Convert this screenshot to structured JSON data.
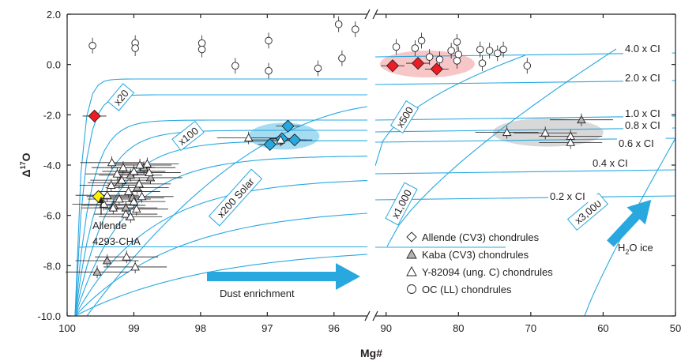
{
  "chart_data": {
    "type": "scatter",
    "xlabel": "Mg#",
    "ylabel_main": "Δ",
    "ylabel_sup": "17",
    "ylabel_end": "O",
    "ylim": [
      -10.0,
      2.0
    ],
    "y_ticks": [
      "2.0",
      "0.0",
      "-2.0",
      "-4.0",
      "-6.0",
      "-8.0",
      "-10.0"
    ],
    "left_panel": {
      "xlim": [
        100,
        95.5
      ],
      "x_ticks": [
        "100",
        "99",
        "98",
        "97",
        "96"
      ]
    },
    "right_panel": {
      "xlim": [
        91.5,
        50
      ],
      "x_ticks": [
        "90",
        "80",
        "70",
        "60",
        "50"
      ]
    },
    "series": [
      {
        "name": "Allende (CV3) chondrules",
        "marker": "diamond",
        "points": [
          {
            "x": 99.59,
            "y": -2.05,
            "color": "#ed1c24"
          },
          {
            "x": 99.53,
            "y": -5.25,
            "color": "#fff200"
          },
          {
            "x": 96.96,
            "y": -3.18,
            "color": "#29a8e0"
          },
          {
            "x": 96.78,
            "y": -2.95,
            "color": "#29a8e0"
          },
          {
            "x": 96.69,
            "y": -2.45,
            "color": "#29a8e0"
          },
          {
            "x": 96.59,
            "y": -3.0,
            "color": "#29a8e0"
          },
          {
            "x": 89.1,
            "y": -0.05,
            "color": "#ed1c24"
          },
          {
            "x": 85.6,
            "y": 0.05,
            "color": "#ed1c24"
          },
          {
            "x": 83.0,
            "y": -0.18,
            "color": "#ed1c24"
          }
        ]
      },
      {
        "name": "Kaba (CV3) chondrules",
        "marker": "triangle-filled",
        "points": [
          {
            "x": 99.3,
            "y": -5.6
          },
          {
            "x": 99.12,
            "y": -5.7
          },
          {
            "x": 99.02,
            "y": -5.3
          },
          {
            "x": 98.95,
            "y": -4.9
          },
          {
            "x": 98.85,
            "y": -4.1
          },
          {
            "x": 99.22,
            "y": -4.7
          },
          {
            "x": 99.05,
            "y": -4.4
          },
          {
            "x": 99.4,
            "y": -7.8
          },
          {
            "x": 99.55,
            "y": -8.25
          },
          {
            "x": 98.75,
            "y": -4.5
          },
          {
            "x": 63.0,
            "y": -2.2
          }
        ]
      },
      {
        "name": "Y-82094 (ung. C) chondrules",
        "marker": "triangle",
        "points": [
          {
            "x": 99.33,
            "y": -3.9
          },
          {
            "x": 99.16,
            "y": -4.1
          },
          {
            "x": 98.91,
            "y": -4.0
          },
          {
            "x": 98.8,
            "y": -3.95
          },
          {
            "x": 99.25,
            "y": -4.35
          },
          {
            "x": 99.0,
            "y": -4.25
          },
          {
            "x": 98.77,
            "y": -4.3
          },
          {
            "x": 99.34,
            "y": -4.8
          },
          {
            "x": 99.18,
            "y": -4.6
          },
          {
            "x": 99.08,
            "y": -5.05
          },
          {
            "x": 98.92,
            "y": -4.75
          },
          {
            "x": 99.4,
            "y": -5.2
          },
          {
            "x": 99.22,
            "y": -5.35
          },
          {
            "x": 99.0,
            "y": -5.45
          },
          {
            "x": 98.88,
            "y": -5.25
          },
          {
            "x": 99.31,
            "y": -5.7
          },
          {
            "x": 99.12,
            "y": -5.95
          },
          {
            "x": 98.96,
            "y": -5.75
          },
          {
            "x": 99.45,
            "y": -5.55
          },
          {
            "x": 99.05,
            "y": -6.05
          },
          {
            "x": 99.11,
            "y": -7.65
          },
          {
            "x": 98.98,
            "y": -8.05
          },
          {
            "x": 97.28,
            "y": -2.92
          },
          {
            "x": 96.8,
            "y": -3.0
          },
          {
            "x": 73.3,
            "y": -2.7
          },
          {
            "x": 68.0,
            "y": -2.72
          },
          {
            "x": 64.5,
            "y": -2.85
          },
          {
            "x": 64.5,
            "y": -3.1
          }
        ]
      },
      {
        "name": "OC (LL) chondrules",
        "marker": "circle",
        "points": [
          {
            "x": 99.62,
            "y": 0.75
          },
          {
            "x": 98.98,
            "y": 0.85
          },
          {
            "x": 98.98,
            "y": 0.65
          },
          {
            "x": 97.98,
            "y": 0.85
          },
          {
            "x": 97.98,
            "y": 0.6
          },
          {
            "x": 97.48,
            "y": -0.05
          },
          {
            "x": 96.98,
            "y": 0.95
          },
          {
            "x": 96.98,
            "y": -0.25
          },
          {
            "x": 96.24,
            "y": -0.15
          },
          {
            "x": 95.93,
            "y": 1.6
          },
          {
            "x": 95.88,
            "y": 0.25
          },
          {
            "x": 95.68,
            "y": 1.4
          },
          {
            "x": 88.6,
            "y": 0.7
          },
          {
            "x": 86.0,
            "y": 0.65
          },
          {
            "x": 85.1,
            "y": 0.95
          },
          {
            "x": 84.0,
            "y": 0.3
          },
          {
            "x": 82.6,
            "y": 0.2
          },
          {
            "x": 81.0,
            "y": 0.55
          },
          {
            "x": 80.2,
            "y": 0.9
          },
          {
            "x": 80.0,
            "y": 0.4
          },
          {
            "x": 80.2,
            "y": 0.15
          },
          {
            "x": 77.0,
            "y": 0.6
          },
          {
            "x": 75.7,
            "y": 0.55
          },
          {
            "x": 74.6,
            "y": 0.45
          },
          {
            "x": 73.8,
            "y": 0.6
          },
          {
            "x": 76.7,
            "y": 0.05
          },
          {
            "x": 70.5,
            "y": -0.05
          }
        ]
      }
    ],
    "enrichment_labels": [
      "4.0 x CI",
      "2.0 x CI",
      "1.0 x CI",
      "0.8 x CI",
      "0.6 x CI",
      "0.4 x CI",
      "0.2 x CI"
    ],
    "mixing_labels": [
      "x20",
      "x100",
      "x200 Solar",
      "x500",
      "x1,000",
      "x3,000"
    ],
    "annotations": {
      "allende_line1": "Allende",
      "allende_line2": "4293-CHA",
      "dust": "Dust enrichment",
      "ice_main": "H",
      "ice_sub": "2",
      "ice_end": "O ice"
    },
    "legend_placement": "bottom-right",
    "colors": {
      "curve": "#29a8e0",
      "arrow": "#29a8e0",
      "highlight_red": "#f7c6c7",
      "highlight_blue": "#a6dcf2",
      "highlight_gray": "#d8d8d8",
      "axis": "#231f20"
    }
  }
}
